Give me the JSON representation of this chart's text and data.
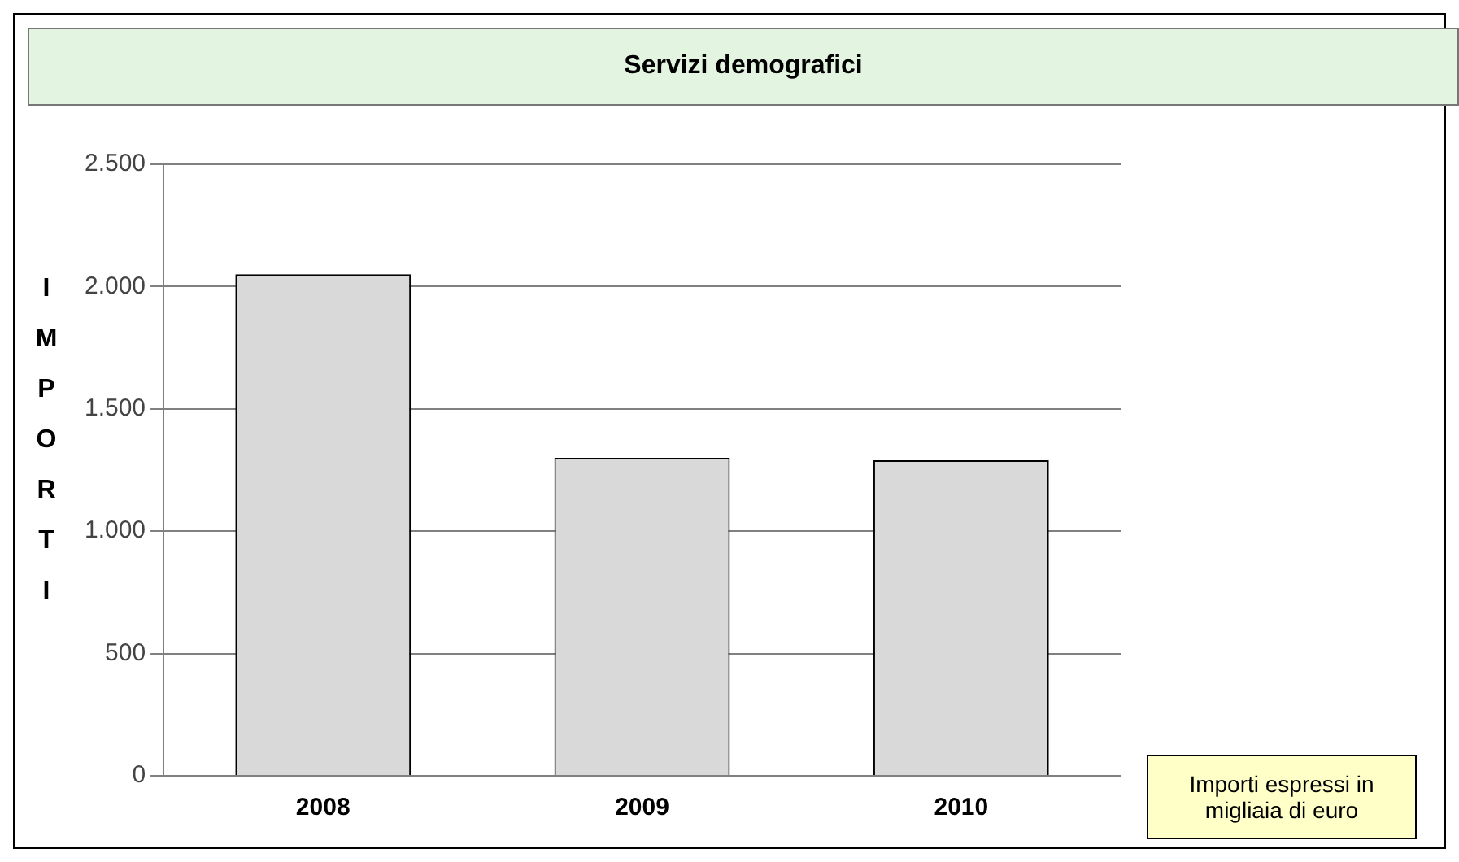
{
  "chart_data": {
    "type": "bar",
    "title": "Servizi demografici",
    "ylabel": "IMPORTI",
    "categories": [
      "2008",
      "2009",
      "2010"
    ],
    "values": [
      2050,
      1300,
      1290
    ],
    "colors": [
      "#d9d9d9",
      "#d9d9d9",
      "#d9d9d9"
    ],
    "ylim": [
      0,
      2500
    ],
    "yticks": [
      {
        "value": 0,
        "label": "0"
      },
      {
        "value": 500,
        "label": "500"
      },
      {
        "value": 1000,
        "label": "1.000"
      },
      {
        "value": 1500,
        "label": "1.500"
      },
      {
        "value": 2000,
        "label": "2.000"
      },
      {
        "value": 2500,
        "label": "2.500"
      }
    ],
    "grid": "y",
    "annotations": [
      "Importi espressi in migliaia di euro"
    ]
  }
}
